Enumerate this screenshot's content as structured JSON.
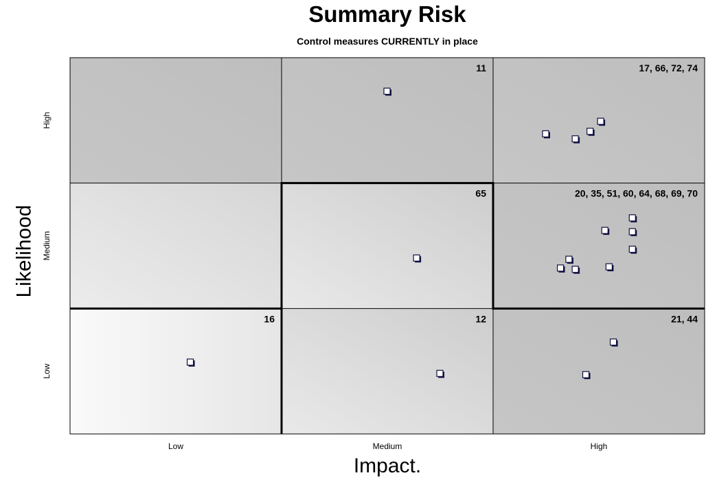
{
  "chart_data": {
    "type": "scatter",
    "title": "Summary Risk",
    "subtitle": "Control measures CURRENTLY in place",
    "xlabel": "Impact.",
    "ylabel": "Likelihood",
    "x_categories": [
      "Low",
      "Medium",
      "High"
    ],
    "y_categories": [
      "Low",
      "Medium",
      "High"
    ],
    "xlim": [
      0,
      3
    ],
    "ylim": [
      0,
      3
    ],
    "grid": true,
    "cells": [
      {
        "impact": "Low",
        "likelihood": "High",
        "label": ""
      },
      {
        "impact": "Medium",
        "likelihood": "High",
        "label": "11"
      },
      {
        "impact": "High",
        "likelihood": "High",
        "label": "17, 66, 72, 74"
      },
      {
        "impact": "Low",
        "likelihood": "Medium",
        "label": ""
      },
      {
        "impact": "Medium",
        "likelihood": "Medium",
        "label": "65"
      },
      {
        "impact": "High",
        "likelihood": "Medium",
        "label": "20, 35, 51, 60, 64, 68, 69, 70"
      },
      {
        "impact": "Low",
        "likelihood": "Low",
        "label": "16"
      },
      {
        "impact": "Medium",
        "likelihood": "Low",
        "label": "12"
      },
      {
        "impact": "High",
        "likelihood": "Low",
        "label": "21, 44"
      }
    ],
    "points": [
      {
        "x": 1.5,
        "y": 2.73
      },
      {
        "x": 2.25,
        "y": 2.39
      },
      {
        "x": 2.39,
        "y": 2.35
      },
      {
        "x": 2.46,
        "y": 2.41
      },
      {
        "x": 2.51,
        "y": 2.49
      },
      {
        "x": 1.64,
        "y": 1.4
      },
      {
        "x": 2.53,
        "y": 1.62
      },
      {
        "x": 2.66,
        "y": 1.72
      },
      {
        "x": 2.66,
        "y": 1.61
      },
      {
        "x": 2.66,
        "y": 1.47
      },
      {
        "x": 2.36,
        "y": 1.39
      },
      {
        "x": 2.32,
        "y": 1.32
      },
      {
        "x": 2.39,
        "y": 1.31
      },
      {
        "x": 2.55,
        "y": 1.33
      },
      {
        "x": 0.57,
        "y": 0.57
      },
      {
        "x": 1.75,
        "y": 0.48
      },
      {
        "x": 2.57,
        "y": 0.73
      },
      {
        "x": 2.44,
        "y": 0.47
      }
    ],
    "risk_boundary": [
      [
        0,
        1
      ],
      [
        1,
        1
      ],
      [
        1,
        0
      ],
      [
        1,
        2
      ],
      [
        2,
        2
      ],
      [
        2,
        1
      ],
      [
        3,
        1
      ]
    ]
  }
}
